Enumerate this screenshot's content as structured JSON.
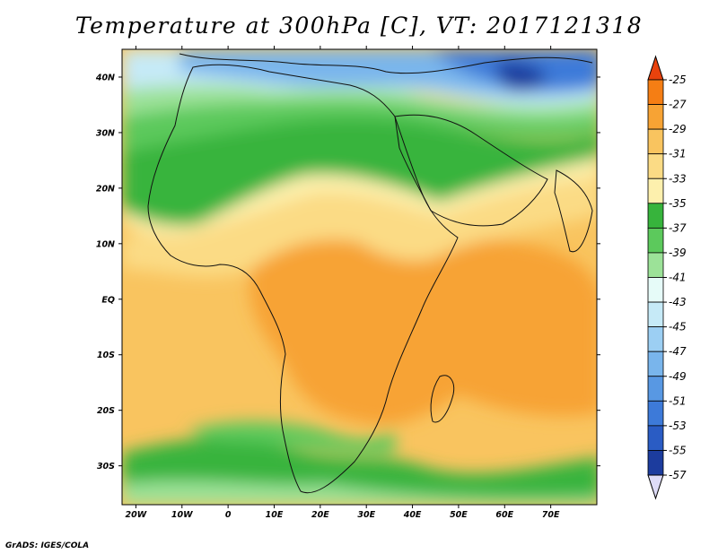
{
  "title": "Temperature at 300hPa [C], VT: 2017121318",
  "footer": "GrADS: IGES/COLA",
  "map": {
    "lon_range": [
      -23,
      80
    ],
    "lat_range": [
      -37,
      45
    ],
    "x_ticks": [
      "20W",
      "10W",
      "0",
      "10E",
      "20E",
      "30E",
      "40E",
      "50E",
      "60E",
      "70E"
    ],
    "x_tick_values": [
      -20,
      -10,
      0,
      10,
      20,
      30,
      40,
      50,
      60,
      70
    ],
    "y_ticks": [
      "40N",
      "30N",
      "20N",
      "10N",
      "EQ",
      "10S",
      "20S",
      "30S"
    ],
    "y_tick_values": [
      40,
      30,
      20,
      10,
      0,
      -10,
      -20,
      -30
    ]
  },
  "colorbar": {
    "labels": [
      "-25",
      "-27",
      "-29",
      "-31",
      "-33",
      "-35",
      "-37",
      "-39",
      "-41",
      "-43",
      "-45",
      "-47",
      "-49",
      "-51",
      "-53",
      "-55",
      "-57"
    ],
    "colors": [
      "#e8420d",
      "#f57e14",
      "#f7a334",
      "#f9c45f",
      "#fbdb85",
      "#fdf0ad",
      "#37b43c",
      "#5cc95c",
      "#9ce298",
      "#e6fbf8",
      "#c6eaf7",
      "#9ccff3",
      "#79b5ec",
      "#5898e3",
      "#3d7ad9",
      "#2a5cc4",
      "#1c3c9e",
      "#0e1d6e"
    ],
    "top_arrow_color": "#e8420d",
    "bottom_arrow_color": "#dedcf7"
  }
}
